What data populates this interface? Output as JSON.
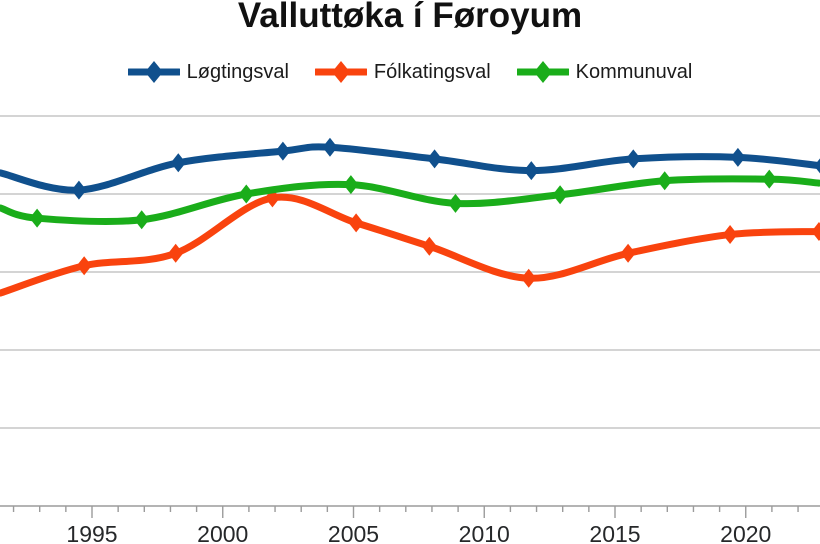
{
  "title": "Valluttøka í Føroyum",
  "chart_data": {
    "type": "line",
    "title": "Valluttøka í Føroyum",
    "xlabel": "",
    "ylabel": "",
    "legend_position": "top",
    "grid": "horizontal",
    "grid_color": "#c6c6c6",
    "axis_color": "#9b9b9b",
    "tick_label_color": "#26282a",
    "ylim": [
      40,
      92
    ],
    "gridline_values": [
      90,
      80,
      70,
      60,
      50
    ],
    "y_axis_labels_visible": false,
    "x_visible_range": [
      1991.5,
      2022.8
    ],
    "x_minor_tick_year_range": [
      1992,
      2023
    ],
    "x_tick_labels": [
      "1995",
      "2000",
      "2005",
      "2010",
      "2015",
      "2020"
    ],
    "values_note": "Turnout percentages estimated from gridlines; y-axis labels cropped out of the visible image. Points flagged edge=true are where a line meets the cropped chart edge.",
    "series": [
      {
        "name": "Løgtingsval",
        "id": "logtingsval",
        "color": "#10508d",
        "marker": "diamond",
        "points": [
          {
            "year": 1991.5,
            "value": 82.7,
            "edge": true
          },
          {
            "year": 1994.5,
            "value": 80.5
          },
          {
            "year": 1998.3,
            "value": 84.0
          },
          {
            "year": 2002.3,
            "value": 85.5
          },
          {
            "year": 2004.1,
            "value": 86.0
          },
          {
            "year": 2008.1,
            "value": 84.5
          },
          {
            "year": 2011.8,
            "value": 83.0
          },
          {
            "year": 2015.7,
            "value": 84.5
          },
          {
            "year": 2019.7,
            "value": 84.7
          },
          {
            "year": 2022.9,
            "value": 83.6
          }
        ]
      },
      {
        "name": "Fólkatingsval",
        "id": "folkatingsval",
        "color": "#f9430e",
        "marker": "diamond",
        "points": [
          {
            "year": 1991.5,
            "value": 67.3,
            "edge": true
          },
          {
            "year": 1994.7,
            "value": 70.8
          },
          {
            "year": 1998.2,
            "value": 72.4
          },
          {
            "year": 2001.9,
            "value": 79.5
          },
          {
            "year": 2005.1,
            "value": 76.3
          },
          {
            "year": 2007.9,
            "value": 73.3
          },
          {
            "year": 2011.7,
            "value": 69.2
          },
          {
            "year": 2015.5,
            "value": 72.4
          },
          {
            "year": 2019.4,
            "value": 74.8
          },
          {
            "year": 2022.8,
            "value": 75.2
          }
        ]
      },
      {
        "name": "Kommunuval",
        "id": "kommunuval",
        "color": "#1aad1a",
        "marker": "diamond",
        "points": [
          {
            "year": 1991.5,
            "value": 78.2,
            "edge": true
          },
          {
            "year": 1992.9,
            "value": 76.9
          },
          {
            "year": 1996.9,
            "value": 76.7
          },
          {
            "year": 2000.9,
            "value": 80.0
          },
          {
            "year": 2004.9,
            "value": 81.2
          },
          {
            "year": 2008.9,
            "value": 78.8
          },
          {
            "year": 2012.9,
            "value": 79.9
          },
          {
            "year": 2016.9,
            "value": 81.7
          },
          {
            "year": 2020.9,
            "value": 81.9
          },
          {
            "year": 2022.8,
            "value": 81.4,
            "edge": true
          }
        ]
      }
    ]
  }
}
